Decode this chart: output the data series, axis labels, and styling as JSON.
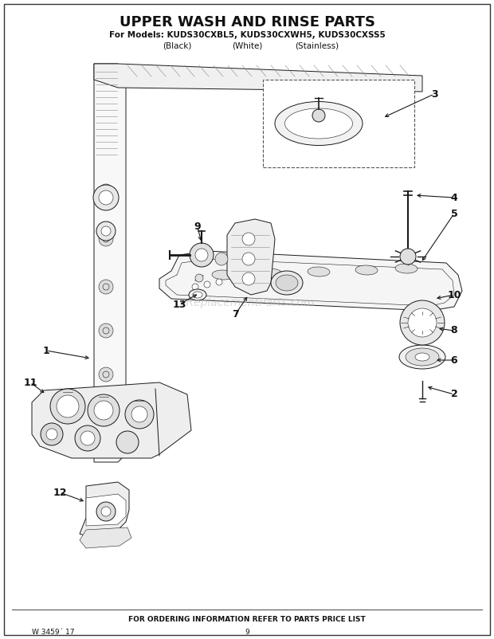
{
  "title": "UPPER WASH AND RINSE PARTS",
  "subtitle_line1": "For Models: KUDS30CXBL5, KUDS30CXWH5, KUDS30CXSS5",
  "subtitle_line2_col1": "(Black)",
  "subtitle_line2_col2": "(White)",
  "subtitle_line2_col3": "(Stainless)",
  "footer_center": "FOR ORDERING INFORMATION REFER TO PARTS PRICE LIST",
  "footer_left": "W 3459´ 17",
  "footer_page": "9",
  "bg_color": "#ffffff",
  "title_fontsize": 13,
  "subtitle_fontsize": 7.5,
  "footer_fontsize": 6.5,
  "watermark_text": "eReplacementParts.com",
  "watermark_color": "#bbbbbb",
  "watermark_alpha": 0.55
}
